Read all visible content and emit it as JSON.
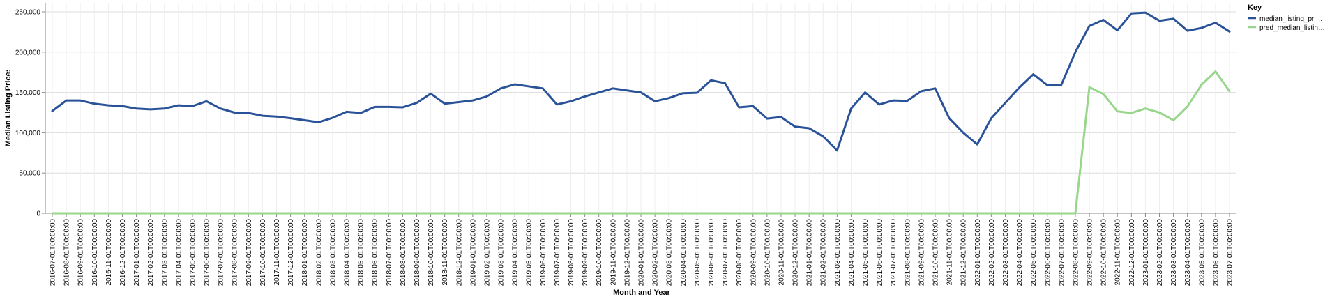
{
  "chart_data": {
    "type": "line",
    "xlabel": "Month and Year",
    "ylabel": "Median Listing Price:",
    "ylim": [
      0,
      250000
    ],
    "yticks": [
      0,
      50000,
      100000,
      150000,
      200000,
      250000
    ],
    "ytick_labels": [
      "0",
      "50,000",
      "100,000",
      "150,000",
      "200,000",
      "250,000"
    ],
    "grid": true,
    "legend": {
      "title": "Key",
      "placement": "right",
      "entries": [
        {
          "label": "median_listing_pri…",
          "color": "#2a5298"
        },
        {
          "label": "pred_median_listin…",
          "color": "#98d68c"
        }
      ]
    },
    "x": [
      "2016-07-01T00:00:00",
      "2016-08-01T00:00:00",
      "2016-09-01T00:00:00",
      "2016-10-01T00:00:00",
      "2016-11-01T00:00:00",
      "2016-12-01T00:00:00",
      "2017-01-01T00:00:00",
      "2017-02-01T00:00:00",
      "2017-03-01T00:00:00",
      "2017-04-01T00:00:00",
      "2017-05-01T00:00:00",
      "2017-06-01T00:00:00",
      "2017-07-01T00:00:00",
      "2017-08-01T00:00:00",
      "2017-09-01T00:00:00",
      "2017-10-01T00:00:00",
      "2017-11-01T00:00:00",
      "2017-12-01T00:00:00",
      "2018-01-01T00:00:00",
      "2018-02-01T00:00:00",
      "2018-03-01T00:00:00",
      "2018-04-01T00:00:00",
      "2018-05-01T00:00:00",
      "2018-06-01T00:00:00",
      "2018-07-01T00:00:00",
      "2018-08-01T00:00:00",
      "2018-09-01T00:00:00",
      "2018-10-01T00:00:00",
      "2018-11-01T00:00:00",
      "2018-12-01T00:00:00",
      "2019-01-01T00:00:00",
      "2019-02-01T00:00:00",
      "2019-03-01T00:00:00",
      "2019-04-01T00:00:00",
      "2019-05-01T00:00:00",
      "2019-06-01T00:00:00",
      "2019-07-01T00:00:00",
      "2019-08-01T00:00:00",
      "2019-09-01T00:00:00",
      "2019-10-01T00:00:00",
      "2019-11-01T00:00:00",
      "2019-12-01T00:00:00",
      "2020-01-01T00:00:00",
      "2020-02-01T00:00:00",
      "2020-03-01T00:00:00",
      "2020-04-01T00:00:00",
      "2020-05-01T00:00:00",
      "2020-06-01T00:00:00",
      "2020-07-01T00:00:00",
      "2020-08-01T00:00:00",
      "2020-09-01T00:00:00",
      "2020-10-01T00:00:00",
      "2020-11-01T00:00:00",
      "2020-12-01T00:00:00",
      "2021-01-01T00:00:00",
      "2021-02-01T00:00:00",
      "2021-03-01T00:00:00",
      "2021-04-01T00:00:00",
      "2021-05-01T00:00:00",
      "2021-06-01T00:00:00",
      "2021-07-01T00:00:00",
      "2021-08-01T00:00:00",
      "2021-09-01T00:00:00",
      "2021-10-01T00:00:00",
      "2021-11-01T00:00:00",
      "2021-12-01T00:00:00",
      "2022-01-01T00:00:00",
      "2022-02-01T00:00:00",
      "2022-03-01T00:00:00",
      "2022-04-01T00:00:00",
      "2022-05-01T00:00:00",
      "2022-06-01T00:00:00",
      "2022-07-01T00:00:00",
      "2022-08-01T00:00:00",
      "2022-09-01T00:00:00",
      "2022-10-01T00:00:00",
      "2022-11-01T00:00:00",
      "2022-12-01T00:00:00",
      "2023-01-01T00:00:00",
      "2023-02-01T00:00:00",
      "2023-03-01T00:00:00",
      "2023-04-01T00:00:00",
      "2023-05-01T00:00:00",
      "2023-06-01T00:00:00",
      "2023-07-01T00:00:00"
    ],
    "series": [
      {
        "name": "median_listing_pri…",
        "color": "#2a5298",
        "values": [
          127000,
          140000,
          140000,
          136000,
          134000,
          133000,
          130000,
          129000,
          130000,
          134000,
          133000,
          139000,
          130000,
          125000,
          124500,
          121000,
          120000,
          118000,
          115500,
          113000,
          118500,
          126000,
          124500,
          132000,
          132000,
          131500,
          137000,
          148500,
          136000,
          138000,
          140000,
          145000,
          155000,
          160000,
          157500,
          155000,
          135000,
          139000,
          145000,
          150000,
          155000,
          152500,
          150000,
          139000,
          143000,
          149000,
          149500,
          165000,
          161500,
          131500,
          133000,
          117500,
          119500,
          107500,
          105500,
          95500,
          78000,
          130000,
          150000,
          135000,
          140000,
          139500,
          151500,
          155000,
          118000,
          100000,
          85500,
          118000,
          137000,
          156000,
          172500,
          159000,
          159500,
          200000,
          232500,
          240000,
          227000,
          248000,
          249000,
          239000,
          241500,
          226500,
          230000,
          236500,
          225500
        ]
      },
      {
        "name": "pred_median_listin…",
        "color": "#98d68c",
        "values": [
          0,
          0,
          0,
          0,
          0,
          0,
          0,
          0,
          0,
          0,
          0,
          0,
          0,
          0,
          0,
          0,
          0,
          0,
          0,
          0,
          0,
          0,
          0,
          0,
          0,
          0,
          0,
          0,
          0,
          0,
          0,
          0,
          0,
          0,
          0,
          0,
          0,
          0,
          0,
          0,
          0,
          0,
          0,
          0,
          0,
          0,
          0,
          0,
          0,
          0,
          0,
          0,
          0,
          0,
          0,
          0,
          0,
          0,
          0,
          0,
          0,
          0,
          0,
          0,
          0,
          0,
          0,
          0,
          0,
          0,
          0,
          0,
          0,
          0,
          156500,
          148000,
          126500,
          124500,
          130000,
          125000,
          115500,
          132500,
          159500,
          176000,
          151500
        ]
      }
    ]
  }
}
